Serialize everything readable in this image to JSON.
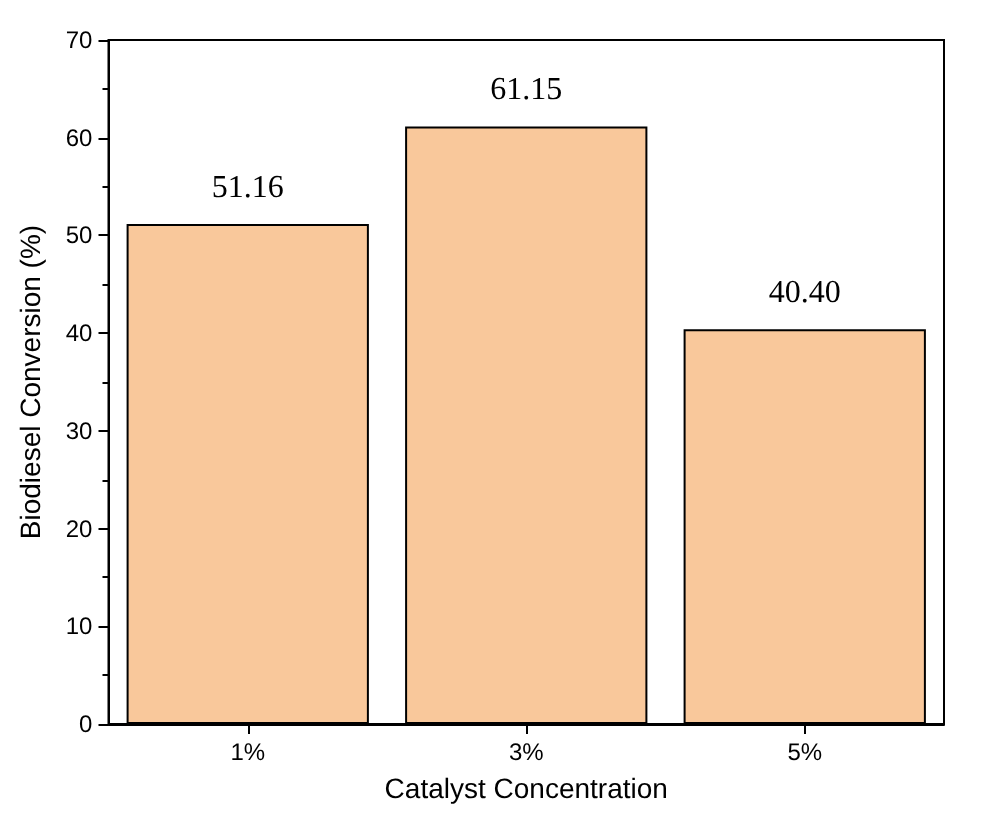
{
  "chart_data": {
    "type": "bar",
    "xlabel": "Catalyst Concentration",
    "ylabel": "Biodiesel Conversion (%)",
    "categories": [
      "1%",
      "3%",
      "5%"
    ],
    "values": [
      51.16,
      61.15,
      40.4
    ],
    "value_labels": [
      "51.16",
      "61.15",
      "40.40"
    ],
    "color": "#f9c89b",
    "ylim": [
      0,
      70
    ],
    "yticks": [
      0,
      10,
      20,
      30,
      40,
      50,
      60,
      70
    ],
    "grid": false
  }
}
